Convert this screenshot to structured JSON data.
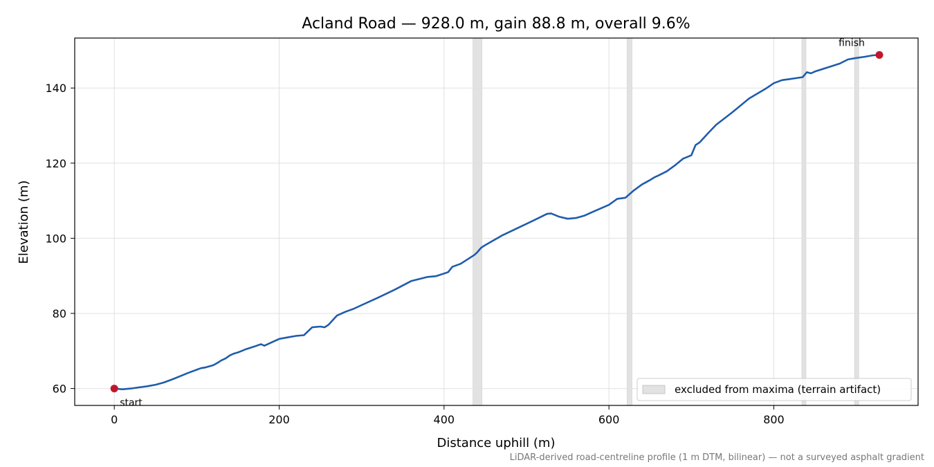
{
  "chart_data": {
    "type": "line",
    "title": "Acland Road — 928.0 m, gain 88.8 m, overall 9.6%",
    "xlabel": "Distance uphill (m)",
    "ylabel": "Elevation (m)",
    "xlim": [
      -48,
      975
    ],
    "ylim": [
      55.5,
      153.3
    ],
    "xticks": [
      0,
      200,
      400,
      600,
      800
    ],
    "yticks": [
      60,
      80,
      100,
      120,
      140
    ],
    "grid": true,
    "legend_placement": "lower-right",
    "legend": {
      "label": "excluded from maxima (terrain artifact)",
      "color": "#e2e2e2"
    },
    "line_color": "#1f5cab",
    "marker_color": "#c0182b",
    "excluded_ranges": [
      [
        435,
        446
      ],
      [
        622,
        628
      ],
      [
        834,
        839
      ],
      [
        898,
        903
      ]
    ],
    "series": [
      {
        "x": [
          0,
          10,
          20,
          30,
          40,
          50,
          60,
          70,
          80,
          90,
          100,
          105,
          110,
          120,
          125,
          130,
          135,
          140,
          145,
          150,
          160,
          170,
          178,
          182,
          190,
          200,
          210,
          220,
          225,
          230,
          240,
          250,
          255,
          260,
          270,
          280,
          290,
          300,
          320,
          340,
          360,
          380,
          390,
          400,
          405,
          410,
          420,
          430,
          437,
          440,
          445,
          450,
          470,
          490,
          510,
          525,
          530,
          540,
          550,
          560,
          570,
          580,
          600,
          610,
          620,
          630,
          640,
          650,
          655,
          660,
          670,
          680,
          690,
          700,
          705,
          710,
          720,
          730,
          750,
          770,
          790,
          800,
          810,
          820,
          835,
          840,
          845,
          850,
          860,
          880,
          890,
          900,
          910,
          920,
          928
        ],
        "y": [
          60,
          59.8,
          60,
          60.3,
          60.6,
          61,
          61.6,
          62.4,
          63.3,
          64.2,
          65,
          65.4,
          65.6,
          66.2,
          66.8,
          67.5,
          68,
          68.8,
          69.3,
          69.6,
          70.5,
          71.2,
          71.8,
          71.4,
          72.2,
          73.2,
          73.6,
          74,
          74.1,
          74.2,
          76.3,
          76.5,
          76.3,
          77,
          79.4,
          80.4,
          81.2,
          82.2,
          84.2,
          86.3,
          88.6,
          89.7,
          89.9,
          90.6,
          91,
          92.4,
          93.2,
          94.6,
          95.6,
          96.2,
          97.5,
          98.2,
          100.7,
          102.8,
          104.9,
          106.5,
          106.6,
          105.7,
          105.2,
          105.4,
          106,
          107,
          108.9,
          110.5,
          110.8,
          112.7,
          114.3,
          115.5,
          116.2,
          116.7,
          117.8,
          119.4,
          121.2,
          122.1,
          124.8,
          125.5,
          127.9,
          130.2,
          133.6,
          137.2,
          139.8,
          141.3,
          142.1,
          142.4,
          142.9,
          144.2,
          143.9,
          144.4,
          145.1,
          146.5,
          147.6,
          148,
          148.3,
          148.7,
          148.8
        ]
      }
    ],
    "annotations": [
      {
        "label": "start",
        "x": 0,
        "y": 60
      },
      {
        "label": "finish",
        "x": 928,
        "y": 148.8
      }
    ],
    "footnote": "LiDAR-derived road-centreline profile (1 m DTM, bilinear) — not a surveyed asphalt gradient"
  }
}
